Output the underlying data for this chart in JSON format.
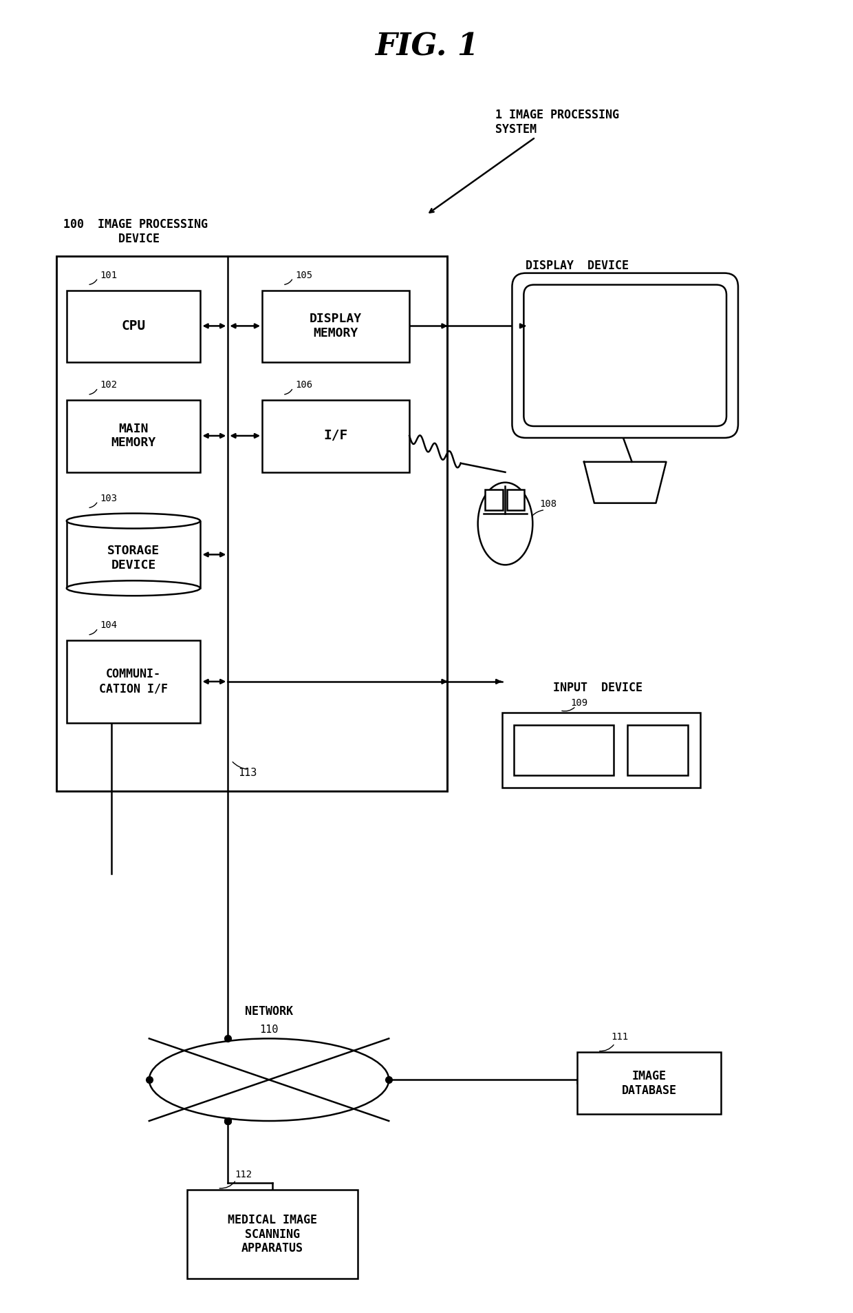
{
  "title": "FIG. 1",
  "bg_color": "#ffffff",
  "line_color": "#000000",
  "title_fontsize": 32,
  "label_fontsize": 12,
  "fig_width": 12.4,
  "fig_height": 19.07,
  "system_label": "1 IMAGE PROCESSING\nSYSTEM",
  "ipd_label": "100 IMAGE PROCESSING\nDEVICE",
  "display_device_label": "DISPLAY  DEVICE",
  "input_device_label": "INPUT  DEVICE",
  "network_label": "NETWORK",
  "network_ref": "110"
}
